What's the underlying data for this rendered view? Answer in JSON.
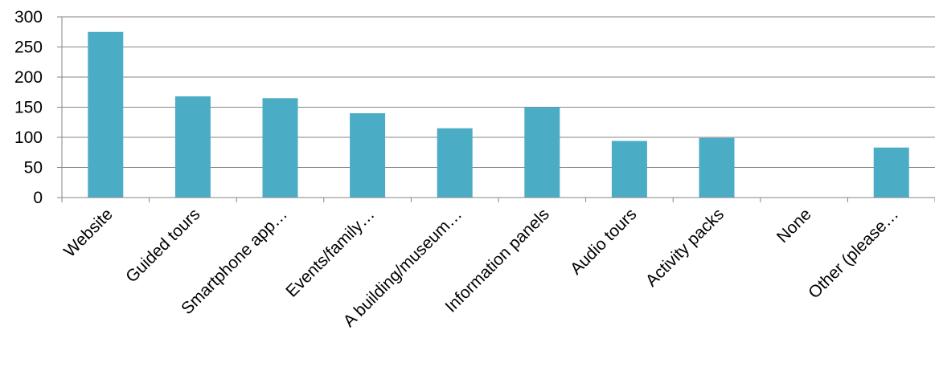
{
  "chart_data": {
    "type": "bar",
    "categories": [
      "Website",
      "Guided tours",
      "Smartphone app…",
      "Events/family…",
      "A building/museum…",
      "Information panels",
      "Audio tours",
      "Activity packs",
      "None",
      "Other (please…"
    ],
    "values": [
      275,
      168,
      165,
      140,
      115,
      150,
      94,
      99,
      0,
      83
    ],
    "ylim": [
      0,
      300
    ],
    "yticks": [
      0,
      50,
      100,
      150,
      200,
      250,
      300
    ],
    "ytick_labels": [
      "0",
      "50",
      "100",
      "150",
      "200",
      "250",
      "300"
    ],
    "grid": true,
    "legend": "none",
    "title": "",
    "xlabel": "",
    "ylabel": ""
  },
  "colors": {
    "bar": "#4bacc6",
    "grid": "#868686",
    "axis": "#868686",
    "text": "#000000"
  }
}
